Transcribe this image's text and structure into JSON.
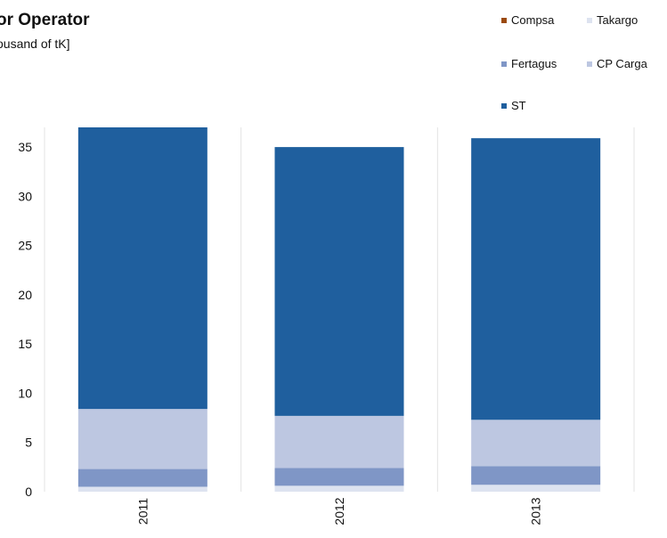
{
  "chart_data": {
    "type": "bar",
    "stacked": true,
    "title": "or Operator",
    "subtitle": "ousand of tK]",
    "categories": [
      "2011",
      "2012",
      "2013"
    ],
    "ylim": [
      0,
      37
    ],
    "yticks": [
      0,
      5,
      10,
      15,
      20,
      25,
      30,
      35
    ],
    "series": [
      {
        "name": "Takargo",
        "color": "#dde3f0",
        "values": [
          0.5,
          0.6,
          0.7
        ]
      },
      {
        "name": "Fertagus",
        "color": "#7f96c6",
        "values": [
          1.8,
          1.8,
          1.9
        ]
      },
      {
        "name": "CP Carga",
        "color": "#bdc7e1",
        "values": [
          6.1,
          5.3,
          4.7
        ]
      },
      {
        "name": "Compsa",
        "color": "#9b4a10",
        "values": [
          0,
          0,
          0
        ]
      },
      {
        "name": "ST",
        "color": "#1f5f9e",
        "values": [
          28.6,
          27.3,
          28.6
        ]
      }
    ],
    "legend_position": "top-right",
    "grid": false
  },
  "legend": [
    {
      "label": "Compsa",
      "color": "#9b4a10"
    },
    {
      "label": "Takargo",
      "color": "#dde3f0"
    },
    {
      "label": "Fertagus",
      "color": "#7f96c6"
    },
    {
      "label": "CP Carga",
      "color": "#bdc7e1"
    },
    {
      "label": "ST",
      "color": "#1f5f9e"
    }
  ]
}
